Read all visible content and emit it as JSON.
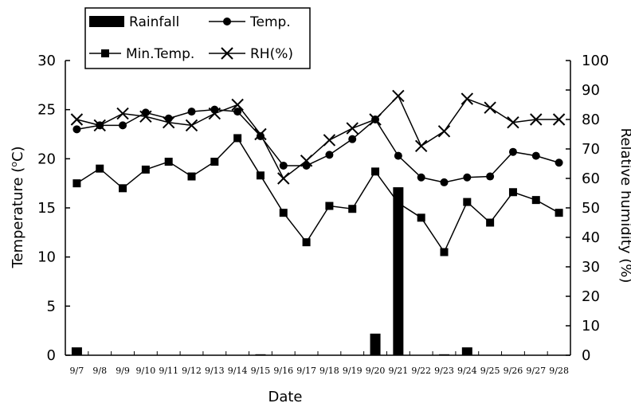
{
  "chart_data": {
    "type": "bar+line",
    "x_categories": [
      "9/7",
      "9/8",
      "9/9",
      "9/10",
      "9/11",
      "9/12",
      "9/13",
      "9/14",
      "9/15",
      "9/16",
      "9/17",
      "9/18",
      "9/19",
      "9/20",
      "9/21",
      "9/22",
      "9/23",
      "9/24",
      "9/25",
      "9/26",
      "9/27",
      "9/28"
    ],
    "xlabel": "Date",
    "ylabel_left": "Temperature (℃)",
    "ylabel_left_parts": {
      "prefix": "Temperature (",
      "sup": "o",
      "suffix": "C)"
    },
    "ylabel_right": "Relative humidity (%)",
    "ylim_left": [
      0,
      30
    ],
    "ylim_right": [
      0,
      100
    ],
    "yticks_left": [
      0,
      5,
      10,
      15,
      20,
      25,
      30
    ],
    "yticks_right": [
      0,
      10,
      20,
      30,
      40,
      50,
      60,
      70,
      80,
      90,
      100
    ],
    "grid": false,
    "legend_position": "top-left",
    "series": [
      {
        "name": "Rainfall",
        "kind": "bar",
        "axis": "left",
        "values": [
          0.8,
          0,
          0,
          0,
          0,
          0,
          0,
          0,
          0.1,
          0,
          0,
          0,
          0,
          2.2,
          17.1,
          0,
          0.1,
          0.8,
          0,
          0,
          0,
          0
        ]
      },
      {
        "name": "Temp.",
        "kind": "line",
        "marker": "circle",
        "axis": "left",
        "values": [
          23.0,
          23.4,
          23.4,
          24.7,
          24.1,
          24.8,
          25.0,
          24.8,
          22.3,
          19.3,
          19.3,
          20.4,
          22.0,
          24.0,
          20.3,
          18.1,
          17.6,
          18.1,
          18.2,
          20.7,
          20.3,
          19.6
        ]
      },
      {
        "name": "Min.Temp.",
        "kind": "line",
        "marker": "square",
        "axis": "left",
        "values": [
          17.5,
          19.0,
          17.0,
          18.9,
          19.7,
          18.2,
          19.7,
          22.1,
          18.3,
          14.5,
          11.5,
          15.2,
          14.9,
          18.7,
          15.5,
          14.0,
          10.5,
          15.6,
          13.5,
          16.6,
          15.8,
          14.5
        ]
      },
      {
        "name": "RH(%)",
        "kind": "line",
        "marker": "x",
        "axis": "right",
        "values": [
          80,
          78,
          82,
          81,
          79,
          78,
          82,
          85,
          75,
          60,
          66,
          73,
          77,
          80,
          88,
          71,
          76,
          87,
          84,
          79,
          80,
          80
        ]
      }
    ]
  },
  "legend": {
    "rainfall": "Rainfall",
    "temp": "Temp.",
    "min_temp": "Min.Temp.",
    "rh": "RH(%)"
  }
}
